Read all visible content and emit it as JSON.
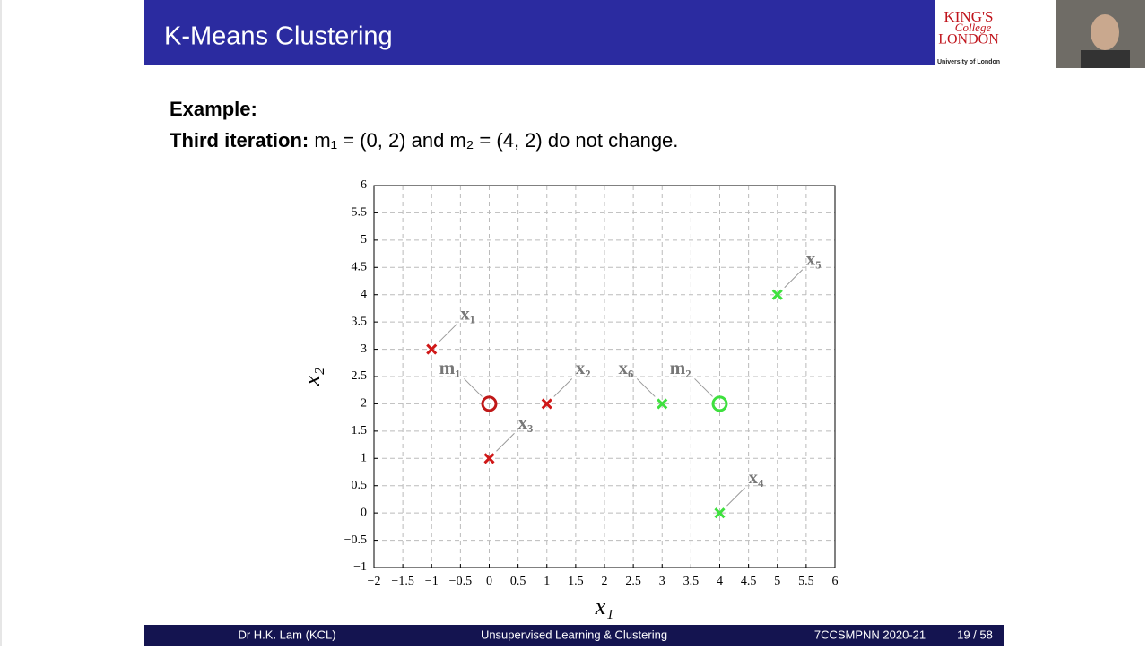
{
  "slide": {
    "title": "K-Means Clustering",
    "logo": [
      "KING'S",
      "College",
      "LONDON"
    ],
    "logo_sub": "University of London",
    "heading": "Example:",
    "line_bold": "Third iteration:",
    "line_rest": "m₁ = (0, 2) and m₂ = (4, 2) do not change.",
    "footer": [
      "Dr H.K. Lam  (KCL)",
      "Unsupervised Learning & Clustering",
      "7CCSMPNN 2020-21",
      "19 / 58"
    ]
  },
  "chart_data": {
    "type": "scatter",
    "xlabel": "x₁",
    "ylabel": "x₂",
    "xlim": [
      -2,
      6
    ],
    "ylim": [
      -1,
      6
    ],
    "grid": true,
    "xticks": [
      {
        "value": -2,
        "label": "−2"
      },
      {
        "value": -1.5,
        "label": "−1.5"
      },
      {
        "value": -1,
        "label": "−1"
      },
      {
        "value": -0.5,
        "label": "−0.5"
      },
      0,
      0.5,
      1,
      1.5,
      2,
      2.5,
      3,
      3.5,
      4,
      4.5,
      5,
      5.5,
      6
    ],
    "yticks": [
      {
        "value": -1,
        "label": "−1"
      },
      {
        "value": -0.5,
        "label": "−0.5"
      },
      0,
      0.5,
      1,
      1.5,
      2,
      2.5,
      3,
      3.5,
      4,
      4.5,
      5,
      5.5,
      6
    ],
    "series": [
      {
        "color": "#d01818",
        "marker": "x",
        "labels": [
          "x₁",
          "x₂",
          "x₃"
        ],
        "x": [
          -1,
          1,
          0
        ],
        "values": [
          3,
          2,
          1
        ]
      },
      {
        "color": "#3ee03e",
        "marker": "x",
        "labels": [
          "x₄",
          "x₅",
          "x₆"
        ],
        "x": [
          4,
          5,
          3
        ],
        "values": [
          0,
          4,
          2
        ]
      },
      {
        "color": "#c01818",
        "marker": "o",
        "labels": [
          "m₁"
        ],
        "x": [
          0
        ],
        "values": [
          2
        ]
      },
      {
        "color": "#3ee03e",
        "marker": "o",
        "labels": [
          "m₂"
        ],
        "x": [
          4
        ],
        "values": [
          2
        ]
      }
    ]
  }
}
